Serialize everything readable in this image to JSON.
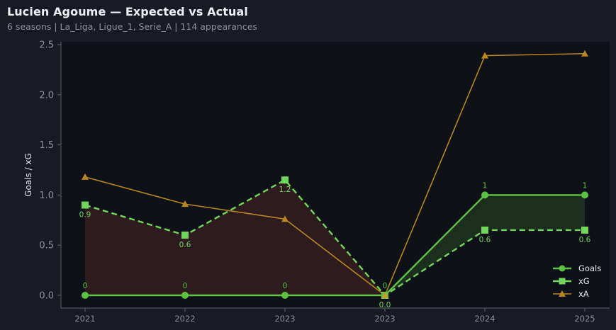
{
  "header": {
    "title": "Lucien Agoume — Expected vs Actual",
    "subtitle": "6 seasons | La_Liga, Ligue_1, Serie_A | 114 appearances"
  },
  "colors": {
    "background": "#181b23",
    "plot_background": "#0e1118",
    "goals": "#5cc244",
    "xg": "#72d65a",
    "xa": "#b8861f",
    "underperform_fill": "#2e1b1e",
    "overperform_fill": "#1c2e1e",
    "axis": "#5a5f6b",
    "tick_text": "#8a8f9c"
  },
  "chart_data": {
    "type": "line",
    "title": "Lucien Agoume — Expected vs Actual",
    "subtitle": "6 seasons | La_Liga, Ligue_1, Serie_A | 114 appearances",
    "xlabel": "",
    "ylabel": "Goals / xG",
    "categories": [
      "2021",
      "2022",
      "2023",
      "2023",
      "2024",
      "2025"
    ],
    "ylim": [
      -0.1,
      2.55
    ],
    "yticks": [
      "0.0",
      "0.5",
      "1.0",
      "1.5",
      "2.0",
      "2.5"
    ],
    "grid": false,
    "legend_position": "lower right",
    "series": [
      {
        "name": "Goals",
        "style": "solid",
        "marker": "circle",
        "values": [
          0,
          0,
          0,
          0,
          1,
          1
        ],
        "labels": [
          "0",
          "0",
          "0",
          "0",
          "1",
          "1"
        ]
      },
      {
        "name": "xG",
        "style": "dashed",
        "marker": "square",
        "values": [
          0.9,
          0.6,
          1.15,
          0.0,
          0.65,
          0.65
        ],
        "labels": [
          "0.9",
          "0.6",
          "1.2",
          "0.0",
          "0.6",
          "0.6"
        ]
      },
      {
        "name": "xA",
        "style": "solid",
        "marker": "triangle",
        "values": [
          1.18,
          0.91,
          0.76,
          0.0,
          2.39,
          2.41
        ]
      }
    ],
    "fills": [
      {
        "between": [
          "Goals",
          "xG"
        ],
        "where": "xG > Goals",
        "color": "underperform"
      },
      {
        "between": [
          "Goals",
          "xG"
        ],
        "where": "Goals > xG",
        "color": "overperform"
      }
    ]
  },
  "legend": {
    "items": [
      {
        "label": "Goals"
      },
      {
        "label": "xG"
      },
      {
        "label": "xA"
      }
    ]
  }
}
